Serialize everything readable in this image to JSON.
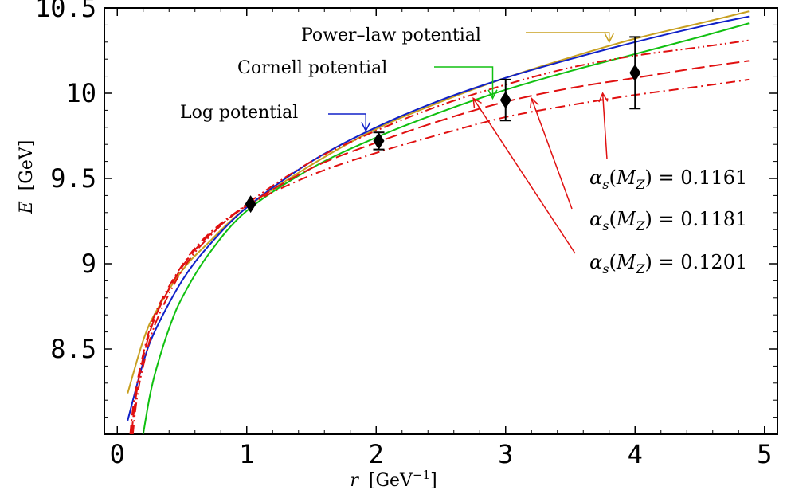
{
  "chart_data": {
    "type": "line",
    "xlim": [
      -0.1,
      5.1
    ],
    "ylim": [
      8.0,
      10.5
    ],
    "x_ticks": [
      0,
      1,
      2,
      3,
      4,
      5
    ],
    "x_tick_labels": [
      "0",
      "1",
      "2",
      "3",
      "4",
      "5"
    ],
    "y_ticks": [
      8.5,
      9,
      9.5,
      10,
      10.5
    ],
    "y_tick_labels": [
      "8.5",
      "9",
      "9.5",
      "10",
      "10.5"
    ],
    "xlabel": {
      "var": "r",
      "unit": "[GeV",
      "sup": "−1",
      "close": "]"
    },
    "ylabel": {
      "var": "E",
      "unit": "[GeV]"
    },
    "grid": false,
    "series": [
      {
        "name": "Power–law potential",
        "color": "#c8a020",
        "style": "solid",
        "x": [
          0.08,
          0.2,
          0.3,
          0.5,
          0.7,
          1.0,
          1.5,
          2.0,
          2.5,
          3.0,
          3.5,
          4.0,
          4.5,
          4.88
        ],
        "y": [
          8.24,
          8.55,
          8.72,
          8.96,
          9.12,
          9.33,
          9.58,
          9.79,
          9.95,
          10.09,
          10.21,
          10.32,
          10.41,
          10.48
        ]
      },
      {
        "name": "Log potential",
        "color": "#1020c8",
        "style": "solid",
        "x": [
          0.08,
          0.2,
          0.3,
          0.5,
          0.7,
          1.0,
          1.5,
          2.0,
          2.5,
          3.0,
          3.5,
          4.0,
          4.5,
          4.88
        ],
        "y": [
          8.08,
          8.42,
          8.62,
          8.9,
          9.1,
          9.33,
          9.6,
          9.8,
          9.96,
          10.09,
          10.2,
          10.3,
          10.39,
          10.45
        ]
      },
      {
        "name": "Cornell potential",
        "color": "#10c010",
        "style": "solid",
        "x": [
          0.2,
          0.25,
          0.3,
          0.4,
          0.5,
          0.7,
          1.0,
          1.5,
          2.0,
          2.5,
          3.0,
          3.5,
          4.0,
          4.5,
          4.88
        ],
        "y": [
          8.0,
          8.22,
          8.38,
          8.62,
          8.8,
          9.05,
          9.31,
          9.56,
          9.74,
          9.89,
          10.02,
          10.13,
          10.23,
          10.33,
          10.41
        ]
      },
      {
        "name": "αs(MZ) = 0.1201",
        "color": "#e01010",
        "style": "dashdotdot",
        "x": [
          0.12,
          0.15,
          0.2,
          0.3,
          0.5,
          0.7,
          1.0,
          1.5,
          2.0,
          2.5,
          3.0,
          3.5,
          4.0,
          4.5,
          4.88
        ],
        "y": [
          8.0,
          8.2,
          8.4,
          8.66,
          8.96,
          9.15,
          9.35,
          9.6,
          9.78,
          9.93,
          10.05,
          10.15,
          10.22,
          10.27,
          10.31
        ]
      },
      {
        "name": "αs(MZ) = 0.1181",
        "color": "#e01010",
        "style": "dashed",
        "x": [
          0.11,
          0.14,
          0.2,
          0.3,
          0.5,
          0.7,
          1.0,
          1.5,
          2.0,
          2.5,
          3.0,
          3.5,
          4.0,
          4.5,
          4.88
        ],
        "y": [
          8.0,
          8.2,
          8.45,
          8.7,
          8.98,
          9.16,
          9.34,
          9.56,
          9.71,
          9.84,
          9.95,
          10.03,
          10.09,
          10.15,
          10.19
        ]
      },
      {
        "name": "αs(MZ) = 0.1161",
        "color": "#e01010",
        "style": "dashdot",
        "x": [
          0.1,
          0.13,
          0.2,
          0.3,
          0.5,
          0.7,
          1.0,
          1.5,
          2.0,
          2.5,
          3.0,
          3.5,
          4.0,
          4.5,
          4.88
        ],
        "y": [
          8.0,
          8.2,
          8.47,
          8.72,
          8.99,
          9.17,
          9.34,
          9.52,
          9.65,
          9.76,
          9.86,
          9.93,
          9.99,
          10.04,
          10.08
        ]
      }
    ],
    "data_points": {
      "marker": "diamond",
      "x": [
        1.03,
        2.02,
        3.0,
        4.0
      ],
      "y": [
        9.35,
        9.72,
        9.96,
        10.12
      ],
      "err": [
        0.02,
        0.05,
        0.12,
        0.21
      ]
    },
    "annotations": [
      {
        "text": "Power–law potential",
        "color": "#c8a020",
        "target_x": 3.8,
        "target_y": 10.3
      },
      {
        "text": "Cornell potential",
        "color": "#10c010",
        "target_x": 2.9,
        "target_y": 9.97
      },
      {
        "text": "Log potential",
        "color": "#1020c8",
        "target_x": 1.92,
        "target_y": 9.78
      },
      {
        "text": "αs(MZ) = 0.1161",
        "alpha": "α",
        "sub_s": "s",
        "m": "M",
        "sub_z": "Z",
        "value": "= 0.1161",
        "color": "#e01010",
        "target_x": 3.75,
        "target_y": 10.0
      },
      {
        "text": "αs(MZ) = 0.1181",
        "alpha": "α",
        "sub_s": "s",
        "m": "M",
        "sub_z": "Z",
        "value": "= 0.1181",
        "color": "#e01010",
        "target_x": 3.2,
        "target_y": 9.97
      },
      {
        "text": "αs(MZ) = 0.1201",
        "alpha": "α",
        "sub_s": "s",
        "m": "M",
        "sub_z": "Z",
        "value": "= 0.1201",
        "color": "#e01010",
        "target_x": 2.75,
        "target_y": 9.97
      }
    ]
  }
}
